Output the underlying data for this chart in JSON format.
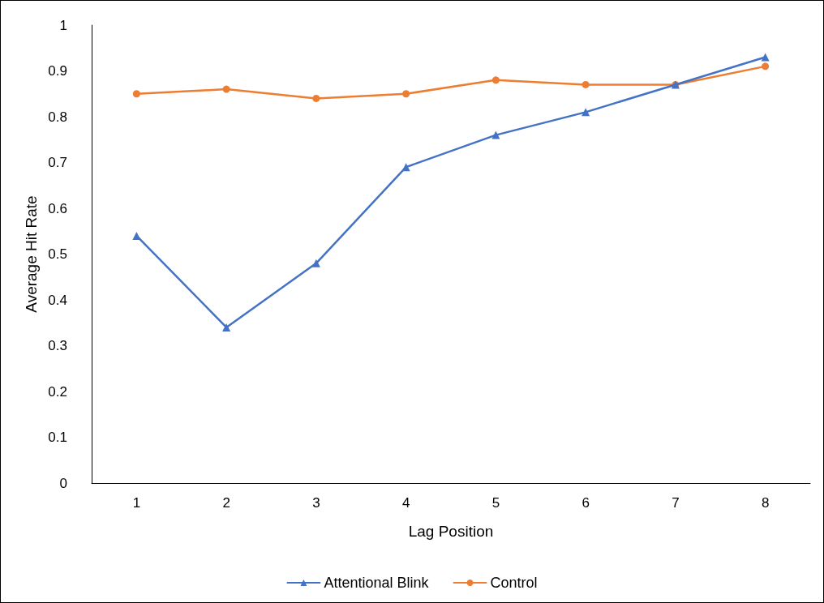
{
  "chart_data": {
    "type": "line",
    "xlabel": "Lag Position",
    "ylabel": "Average Hit Rate",
    "categories": [
      "1",
      "2",
      "3",
      "4",
      "5",
      "6",
      "7",
      "8"
    ],
    "series": [
      {
        "name": "Attentional Blink",
        "color": "#4472c4",
        "marker": "triangle",
        "values": [
          0.54,
          0.34,
          0.48,
          0.69,
          0.76,
          0.81,
          0.87,
          0.93
        ]
      },
      {
        "name": "Control",
        "color": "#ed7d31",
        "marker": "circle",
        "values": [
          0.85,
          0.86,
          0.84,
          0.85,
          0.88,
          0.87,
          0.87,
          0.91
        ]
      }
    ],
    "ylim": [
      0,
      1
    ],
    "yticks": [
      0,
      0.1,
      0.2,
      0.3,
      0.4,
      0.5,
      0.6,
      0.7,
      0.8,
      0.9,
      1
    ],
    "grid": false,
    "legend": "bottom",
    "line_style": "solid"
  }
}
